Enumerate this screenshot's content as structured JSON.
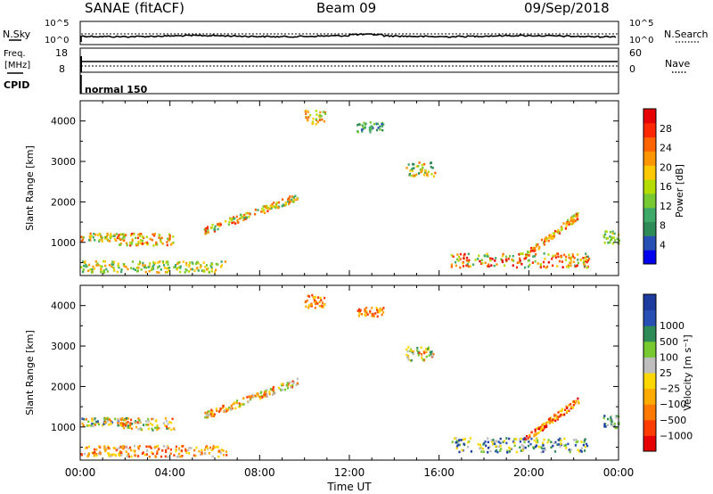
{
  "header": {
    "station": "SANAE (fitACF)",
    "beam": "Beam 09",
    "date": "09/Sep/2018"
  },
  "sky_panel": {
    "left_label": "N.Sky",
    "left_ticks": [
      "10^5",
      "10^0"
    ],
    "right_ticks": [
      "10^5",
      "10^0"
    ],
    "right_label": "N.Search"
  },
  "freq_panel": {
    "left_label_1": "Freq.",
    "left_label_2": "[MHz]",
    "left_ticks": [
      "18",
      "8"
    ],
    "right_ticks": [
      "60",
      "0"
    ],
    "right_label": "Nave",
    "cpid_label": "CPID",
    "mode": "normal 150"
  },
  "colors": {
    "power_scale": [
      "#0000ee",
      "#2850b4",
      "#2e8b57",
      "#3fa96a",
      "#78c832",
      "#b4dc00",
      "#ffc800",
      "#ff9600",
      "#ff6400",
      "#ff2800",
      "#e60000"
    ],
    "velocity_scale": [
      "#e60000",
      "#ff3c00",
      "#ff7800",
      "#ffaa00",
      "#ffd700",
      "#bebebe",
      "#78c832",
      "#2e8b57",
      "#2850b4",
      "#1e3ca0"
    ]
  },
  "chart_data": [
    {
      "type": "heatmap",
      "name": "power",
      "ylabel": "Slant Range [km]",
      "colorbar_label": "Power [dB]",
      "colorbar_ticks": [
        "4",
        "8",
        "12",
        "16",
        "20",
        "24",
        "28"
      ],
      "ylim": [
        180,
        4500
      ],
      "yticks": [
        "1000",
        "2000",
        "3000",
        "4000"
      ],
      "xlim": [
        0,
        24
      ],
      "scatter_regions": [
        {
          "t": [
            0.0,
            6.5
          ],
          "r": [
            280,
            560
          ],
          "level": [
            3,
            7
          ]
        },
        {
          "t": [
            0.0,
            2.0
          ],
          "r": [
            1050,
            1250
          ],
          "level": [
            3,
            8
          ]
        },
        {
          "t": [
            1.6,
            4.2
          ],
          "r": [
            950,
            1250
          ],
          "level": [
            4,
            9
          ]
        },
        {
          "t": [
            5.5,
            9.7
          ],
          "r": [
            1300,
            2150
          ],
          "level": [
            3,
            9
          ],
          "slope": true
        },
        {
          "t": [
            10.0,
            10.9
          ],
          "r": [
            3950,
            4300
          ],
          "level": [
            4,
            8
          ]
        },
        {
          "t": [
            12.3,
            13.5
          ],
          "r": [
            3750,
            4000
          ],
          "level": [
            1,
            4
          ]
        },
        {
          "t": [
            14.5,
            15.8
          ],
          "r": [
            2650,
            3000
          ],
          "level": [
            2,
            8
          ]
        },
        {
          "t": [
            16.5,
            22.7
          ],
          "r": [
            400,
            750
          ],
          "level": [
            3,
            10
          ]
        },
        {
          "t": [
            19.8,
            22.2
          ],
          "r": [
            700,
            1700
          ],
          "level": [
            4,
            9
          ],
          "slope": true
        },
        {
          "t": [
            23.3,
            24.0
          ],
          "r": [
            1000,
            1300
          ],
          "level": [
            3,
            6
          ]
        }
      ]
    },
    {
      "type": "heatmap",
      "name": "velocity",
      "ylabel": "Slant Range [km]",
      "colorbar_label": "Velocity [m s⁻¹]",
      "colorbar_ticks": [
        "-1000",
        "-500",
        "-100",
        "-25",
        "25",
        "100",
        "500",
        "1000"
      ],
      "ylim": [
        180,
        4500
      ],
      "yticks": [
        "1000",
        "2000",
        "3000",
        "4000"
      ],
      "xlim": [
        0,
        24
      ],
      "xticks": [
        "00:00",
        "04:00",
        "08:00",
        "12:00",
        "16:00",
        "20:00",
        "00:00"
      ],
      "xlabel": "Time UT",
      "scatter_regions": [
        {
          "t": [
            0.0,
            6.5
          ],
          "r": [
            280,
            560
          ],
          "level": [
            1,
            5
          ]
        },
        {
          "t": [
            0.0,
            2.0
          ],
          "r": [
            1050,
            1250
          ],
          "level": [
            2,
            8
          ]
        },
        {
          "t": [
            1.6,
            4.2
          ],
          "r": [
            950,
            1250
          ],
          "level": [
            1,
            7
          ]
        },
        {
          "t": [
            5.5,
            9.7
          ],
          "r": [
            1300,
            2150
          ],
          "level": [
            1,
            6
          ],
          "slope": true
        },
        {
          "t": [
            10.0,
            10.9
          ],
          "r": [
            3950,
            4300
          ],
          "level": [
            1,
            4
          ]
        },
        {
          "t": [
            12.3,
            13.5
          ],
          "r": [
            3750,
            4000
          ],
          "level": [
            1,
            4
          ]
        },
        {
          "t": [
            14.5,
            15.8
          ],
          "r": [
            2650,
            3000
          ],
          "level": [
            1,
            7
          ]
        },
        {
          "t": [
            16.5,
            22.7
          ],
          "r": [
            400,
            750
          ],
          "level": [
            4,
            9
          ]
        },
        {
          "t": [
            19.8,
            22.2
          ],
          "r": [
            700,
            1700
          ],
          "level": [
            0,
            4
          ],
          "slope": true
        },
        {
          "t": [
            23.3,
            24.0
          ],
          "r": [
            1000,
            1300
          ],
          "level": [
            5,
            9
          ]
        }
      ]
    }
  ]
}
